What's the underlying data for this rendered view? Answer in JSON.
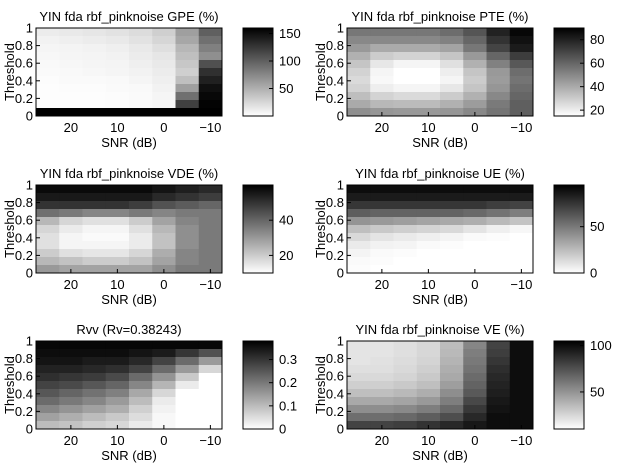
{
  "figure": {
    "panels": [
      {
        "title": "YIN fda rbf_pinknoise GPE (%)",
        "chart_data": {
          "type": "heatmap",
          "xlabel": "SNR (dB)",
          "ylabel": "Threshold",
          "x_ticks": [
            "20",
            "10",
            "0",
            "−10"
          ],
          "y_ticks": [
            "0",
            "0.2",
            "0.4",
            "0.6",
            "0.8",
            "1"
          ],
          "colorbar_ticks": [
            "50",
            "100",
            "150"
          ],
          "colorbar_range": [
            0,
            160
          ],
          "colormap": "gray_reversed",
          "columns": 8,
          "rows": 11,
          "values": [
            [
              12,
              14,
              16,
              18,
              22,
              30,
              60,
              100
            ],
            [
              8,
              10,
              12,
              14,
              18,
              26,
              55,
              90
            ],
            [
              6,
              7,
              8,
              10,
              14,
              20,
              45,
              80
            ],
            [
              5,
              6,
              7,
              8,
              12,
              16,
              40,
              70
            ],
            [
              4,
              5,
              6,
              7,
              10,
              14,
              35,
              110
            ],
            [
              3,
              4,
              5,
              6,
              8,
              12,
              30,
              130
            ],
            [
              2,
              3,
              3,
              4,
              6,
              10,
              40,
              140
            ],
            [
              1,
              2,
              2,
              3,
              4,
              8,
              60,
              150
            ],
            [
              1,
              1,
              1,
              2,
              3,
              6,
              90,
              155
            ],
            [
              1,
              1,
              1,
              2,
              3,
              5,
              120,
              158
            ],
            [
              160,
              160,
              160,
              160,
              160,
              160,
              160,
              160
            ]
          ]
        }
      },
      {
        "title": "YIN fda rbf_pinknoise PTE (%)",
        "chart_data": {
          "type": "heatmap",
          "xlabel": "SNR (dB)",
          "ylabel": "Threshold",
          "x_ticks": [
            "20",
            "10",
            "0",
            "−10"
          ],
          "y_ticks": [
            "0",
            "0.2",
            "0.4",
            "0.6",
            "0.8",
            "1"
          ],
          "colorbar_ticks": [
            "20",
            "40",
            "60",
            "80"
          ],
          "colorbar_range": [
            15,
            90
          ],
          "colormap": "gray_reversed",
          "columns": 8,
          "rows": 11,
          "values": [
            [
              55,
              55,
              55,
              55,
              58,
              65,
              80,
              88
            ],
            [
              50,
              50,
              50,
              50,
              52,
              60,
              75,
              85
            ],
            [
              45,
              40,
              40,
              40,
              42,
              55,
              70,
              82
            ],
            [
              38,
              30,
              28,
              28,
              32,
              45,
              60,
              72
            ],
            [
              32,
              22,
              18,
              18,
              24,
              38,
              52,
              64
            ],
            [
              28,
              18,
              15,
              15,
              20,
              32,
              45,
              58
            ],
            [
              26,
              17,
              15,
              15,
              18,
              30,
              44,
              56
            ],
            [
              28,
              20,
              18,
              18,
              22,
              32,
              46,
              58
            ],
            [
              34,
              28,
              26,
              26,
              30,
              38,
              50,
              60
            ],
            [
              40,
              36,
              35,
              35,
              38,
              44,
              54,
              62
            ],
            [
              48,
              46,
              45,
              45,
              46,
              50,
              56,
              62
            ]
          ]
        }
      },
      {
        "title": "YIN fda rbf_pinknoise VDE (%)",
        "chart_data": {
          "type": "heatmap",
          "xlabel": "SNR (dB)",
          "ylabel": "Threshold",
          "x_ticks": [
            "20",
            "10",
            "0",
            "−10"
          ],
          "y_ticks": [
            "0",
            "0.2",
            "0.4",
            "0.6",
            "0.8",
            "1"
          ],
          "colorbar_ticks": [
            "20",
            "40"
          ],
          "colorbar_range": [
            10,
            60
          ],
          "colormap": "gray_reversed",
          "columns": 8,
          "rows": 11,
          "values": [
            [
              58,
              58,
              58,
              58,
              58,
              56,
              54,
              52
            ],
            [
              55,
              55,
              55,
              55,
              55,
              52,
              50,
              48
            ],
            [
              50,
              50,
              50,
              50,
              48,
              44,
              42,
              40
            ],
            [
              38,
              36,
              34,
              34,
              36,
              34,
              36,
              36
            ],
            [
              24,
              18,
              16,
              16,
              20,
              28,
              34,
              36
            ],
            [
              18,
              14,
              12,
              12,
              16,
              24,
              32,
              36
            ],
            [
              16,
              12,
              11,
              11,
              14,
              22,
              32,
              36
            ],
            [
              16,
              12,
              12,
              12,
              14,
              22,
              32,
              36
            ],
            [
              20,
              16,
              15,
              15,
              18,
              26,
              34,
              36
            ],
            [
              24,
              22,
              20,
              20,
              22,
              28,
              34,
              36
            ],
            [
              30,
              28,
              28,
              28,
              28,
              32,
              36,
              36
            ]
          ]
        }
      },
      {
        "title": "YIN fda rbf_pinknoise UE (%)",
        "chart_data": {
          "type": "heatmap",
          "xlabel": "SNR (dB)",
          "ylabel": "Threshold",
          "x_ticks": [
            "20",
            "10",
            "0",
            "−10"
          ],
          "y_ticks": [
            "0",
            "0.2",
            "0.4",
            "0.6",
            "0.8",
            "1"
          ],
          "colorbar_ticks": [
            "0",
            "50"
          ],
          "colorbar_range": [
            0,
            95
          ],
          "colormap": "gray_reversed",
          "columns": 8,
          "rows": 11,
          "values": [
            [
              90,
              90,
              90,
              90,
              90,
              90,
              90,
              90
            ],
            [
              85,
              85,
              85,
              85,
              85,
              85,
              85,
              85
            ],
            [
              75,
              75,
              75,
              75,
              75,
              75,
              72,
              70
            ],
            [
              60,
              58,
              58,
              58,
              58,
              56,
              52,
              48
            ],
            [
              40,
              38,
              36,
              34,
              32,
              30,
              26,
              22
            ],
            [
              24,
              20,
              18,
              16,
              14,
              10,
              6,
              3
            ],
            [
              14,
              10,
              8,
              6,
              4,
              2,
              1,
              0
            ],
            [
              8,
              5,
              4,
              2,
              1,
              0,
              0,
              0
            ],
            [
              4,
              2,
              1,
              0,
              0,
              0,
              0,
              0
            ],
            [
              2,
              1,
              0,
              0,
              0,
              0,
              0,
              0
            ],
            [
              1,
              0,
              0,
              0,
              0,
              0,
              0,
              0
            ]
          ]
        }
      },
      {
        "title": "Rvv (Rv=0.38243)",
        "chart_data": {
          "type": "heatmap",
          "xlabel": "SNR (dB)",
          "ylabel": "Threshold",
          "x_ticks": [
            "20",
            "10",
            "0",
            "−10"
          ],
          "y_ticks": [
            "0",
            "0.2",
            "0.4",
            "0.6",
            "0.8",
            "1"
          ],
          "colorbar_ticks": [
            "0",
            "0.1",
            "0.2",
            "0.3"
          ],
          "colorbar_range": [
            0,
            0.38
          ],
          "colormap": "gray_reversed",
          "columns": 8,
          "rows": 11,
          "values": [
            [
              0.37,
              0.37,
              0.37,
              0.37,
              0.37,
              0.37,
              0.37,
              0.37
            ],
            [
              0.36,
              0.36,
              0.36,
              0.36,
              0.35,
              0.34,
              0.3,
              0.26
            ],
            [
              0.35,
              0.35,
              0.34,
              0.34,
              0.32,
              0.28,
              0.22,
              0.15
            ],
            [
              0.33,
              0.33,
              0.32,
              0.31,
              0.28,
              0.22,
              0.15,
              0.06
            ],
            [
              0.31,
              0.3,
              0.29,
              0.27,
              0.22,
              0.16,
              0.08,
              0.0
            ],
            [
              0.28,
              0.27,
              0.25,
              0.23,
              0.18,
              0.11,
              0.03,
              0.0
            ],
            [
              0.25,
              0.23,
              0.21,
              0.19,
              0.13,
              0.06,
              0.0,
              0.0
            ],
            [
              0.22,
              0.2,
              0.18,
              0.15,
              0.1,
              0.03,
              0.0,
              0.0
            ],
            [
              0.18,
              0.16,
              0.14,
              0.12,
              0.07,
              0.02,
              0.0,
              0.0
            ],
            [
              0.14,
              0.12,
              0.1,
              0.08,
              0.05,
              0.01,
              0.0,
              0.0
            ],
            [
              0.1,
              0.09,
              0.07,
              0.06,
              0.03,
              0.01,
              0.0,
              0.0
            ]
          ]
        }
      },
      {
        "title": "YIN fda rbf_pinknoise VE (%)",
        "chart_data": {
          "type": "heatmap",
          "xlabel": "SNR (dB)",
          "ylabel": "Threshold",
          "x_ticks": [
            "20",
            "10",
            "0",
            "−10"
          ],
          "y_ticks": [
            "0",
            "0.2",
            "0.4",
            "0.6",
            "0.8",
            "1"
          ],
          "colorbar_ticks": [
            "50",
            "100"
          ],
          "colorbar_range": [
            10,
            105
          ],
          "colormap": "gray_reversed",
          "columns": 8,
          "rows": 11,
          "values": [
            [
              20,
              20,
              22,
              25,
              35,
              55,
              80,
              100
            ],
            [
              20,
              20,
              22,
              25,
              36,
              58,
              82,
              100
            ],
            [
              20,
              21,
              23,
              26,
              38,
              60,
              85,
              100
            ],
            [
              22,
              22,
              24,
              28,
              40,
              62,
              88,
              100
            ],
            [
              24,
              24,
              26,
              30,
              42,
              65,
              90,
              100
            ],
            [
              28,
              28,
              30,
              34,
              46,
              68,
              92,
              100
            ],
            [
              34,
              34,
              36,
              40,
              52,
              72,
              94,
              100
            ],
            [
              42,
              42,
              44,
              48,
              58,
              78,
              96,
              100
            ],
            [
              52,
              52,
              54,
              58,
              66,
              84,
              98,
              100
            ],
            [
              64,
              64,
              66,
              70,
              76,
              90,
              100,
              100
            ],
            [
              80,
              80,
              82,
              86,
              90,
              96,
              100,
              100
            ]
          ]
        }
      }
    ]
  }
}
